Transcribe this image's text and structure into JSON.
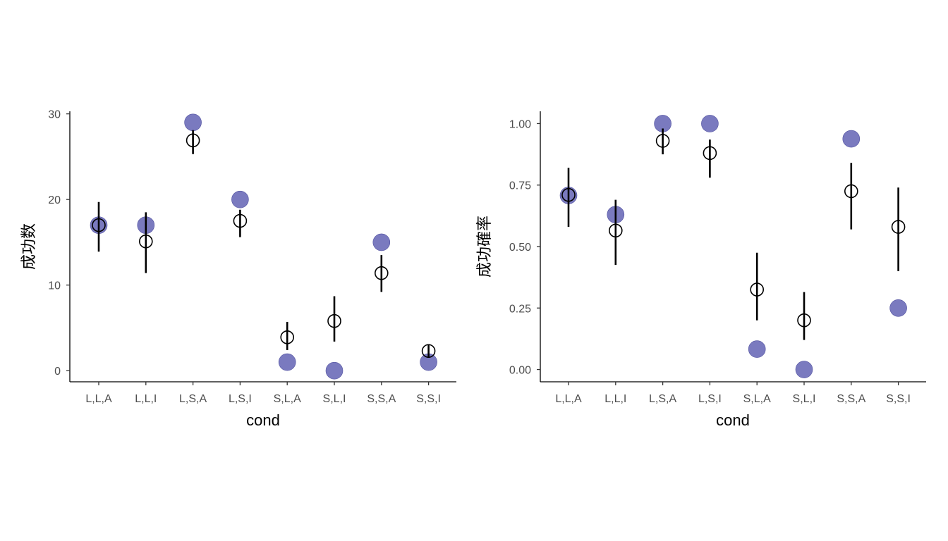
{
  "chart_data": [
    {
      "type": "scatter",
      "xlabel": "cond",
      "ylabel": "成功数",
      "categories": [
        "L,L,A",
        "L,L,I",
        "L,S,A",
        "L,S,I",
        "S,L,A",
        "S,L,I",
        "S,S,A",
        "S,S,I"
      ],
      "ylim": [
        -1.3,
        30.3
      ],
      "yticks": [
        0,
        10,
        20,
        30
      ],
      "ytick_labels": [
        "0",
        "10",
        "20",
        "30"
      ],
      "series": [
        {
          "kind": "observed",
          "marker": "filled-circle",
          "color": "#7a7abf",
          "values": [
            17,
            17,
            29,
            20,
            1,
            0,
            15,
            1
          ]
        },
        {
          "kind": "estimate",
          "marker": "open-circle",
          "color": "#000000",
          "values": [
            17,
            15.1,
            26.9,
            17.5,
            3.9,
            5.8,
            11.4,
            2.3
          ],
          "lower": [
            13.9,
            11.4,
            25.3,
            15.6,
            2.4,
            3.4,
            9.2,
            1.6
          ],
          "upper": [
            19.7,
            18.5,
            28.1,
            18.8,
            5.7,
            8.7,
            13.5,
            3.0
          ]
        }
      ]
    },
    {
      "type": "scatter",
      "xlabel": "cond",
      "ylabel": "成功確率",
      "categories": [
        "L,L,A",
        "L,L,I",
        "L,S,A",
        "L,S,I",
        "S,L,A",
        "S,L,I",
        "S,S,A",
        "S,S,I"
      ],
      "ylim": [
        -0.05,
        1.05
      ],
      "yticks": [
        0,
        0.25,
        0.5,
        0.75,
        1
      ],
      "ytick_labels": [
        "0.00",
        "0.25",
        "0.50",
        "0.75",
        "1.00"
      ],
      "series": [
        {
          "kind": "observed",
          "marker": "filled-circle",
          "color": "#7a7abf",
          "values": [
            0.708,
            0.63,
            1.0,
            1.0,
            0.083,
            0.0,
            0.938,
            0.25
          ]
        },
        {
          "kind": "estimate",
          "marker": "open-circle",
          "color": "#000000",
          "values": [
            0.71,
            0.565,
            0.93,
            0.88,
            0.325,
            0.2,
            0.725,
            0.58
          ],
          "lower": [
            0.58,
            0.425,
            0.875,
            0.78,
            0.2,
            0.12,
            0.57,
            0.4
          ],
          "upper": [
            0.82,
            0.69,
            0.98,
            0.935,
            0.475,
            0.315,
            0.84,
            0.74
          ]
        }
      ]
    }
  ]
}
